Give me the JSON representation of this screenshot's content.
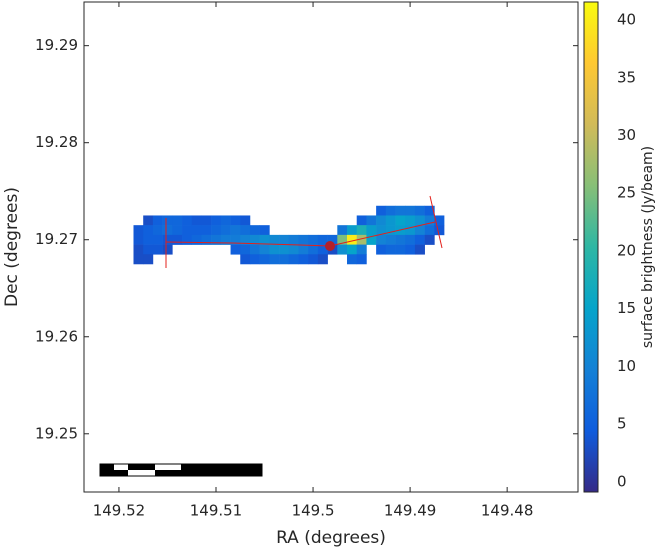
{
  "chart_data": {
    "type": "heatmap",
    "xlabel": "RA (degrees)",
    "ylabel": "Dec (degrees)",
    "colorbar_label": "surface brightness (Jy/beam)",
    "xlim": [
      149.5236,
      149.4727
    ],
    "ylim": [
      19.244,
      19.2945
    ],
    "zlim": [
      -0.87,
      41.56
    ],
    "xticks": [
      149.52,
      149.51,
      149.5,
      149.49,
      149.48
    ],
    "yticks": [
      19.25,
      19.26,
      19.27,
      19.28,
      19.29
    ],
    "zticks": [
      0,
      5,
      10,
      15,
      20,
      25,
      30,
      35,
      40
    ],
    "x": [
      149.517,
      149.516,
      149.515,
      149.514,
      149.513,
      149.512,
      149.511,
      149.51,
      149.509,
      149.508,
      149.507,
      149.518,
      149.517,
      149.516,
      149.515,
      149.514,
      149.513,
      149.512,
      149.511,
      149.51,
      149.509,
      149.508,
      149.507,
      149.506,
      149.505,
      149.518,
      149.517,
      149.516,
      149.515,
      149.514,
      149.513,
      149.512,
      149.511,
      149.51,
      149.509,
      149.508,
      149.507,
      149.506,
      149.505,
      149.504,
      149.503,
      149.502,
      149.501,
      149.5,
      149.499,
      149.498,
      149.518,
      149.517,
      149.516,
      149.515,
      149.508,
      149.507,
      149.506,
      149.505,
      149.504,
      149.503,
      149.502,
      149.501,
      149.5,
      149.499,
      149.498,
      149.518,
      149.517,
      149.507,
      149.506,
      149.505,
      149.504,
      149.503,
      149.502,
      149.501,
      149.5,
      149.499,
      149.493,
      149.492,
      149.491,
      149.49,
      149.489,
      149.488,
      149.495,
      149.494,
      149.493,
      149.492,
      149.491,
      149.49,
      149.489,
      149.488,
      149.487,
      149.497,
      149.496,
      149.495,
      149.494,
      149.493,
      149.492,
      149.491,
      149.49,
      149.489,
      149.488,
      149.487,
      149.497,
      149.496,
      149.495,
      149.494,
      149.493,
      149.492,
      149.491,
      149.49,
      149.489,
      149.488,
      149.497,
      149.496,
      149.495,
      149.493,
      149.492,
      149.491,
      149.49,
      149.489,
      149.496,
      149.495
    ],
    "y": [
      19.272,
      19.272,
      19.272,
      19.272,
      19.272,
      19.272,
      19.272,
      19.272,
      19.272,
      19.272,
      19.272,
      19.271,
      19.271,
      19.271,
      19.271,
      19.271,
      19.271,
      19.271,
      19.271,
      19.271,
      19.271,
      19.271,
      19.271,
      19.271,
      19.271,
      19.27,
      19.27,
      19.27,
      19.27,
      19.27,
      19.27,
      19.27,
      19.27,
      19.27,
      19.27,
      19.27,
      19.27,
      19.27,
      19.27,
      19.27,
      19.27,
      19.27,
      19.27,
      19.27,
      19.27,
      19.27,
      19.269,
      19.269,
      19.269,
      19.269,
      19.269,
      19.269,
      19.269,
      19.269,
      19.269,
      19.269,
      19.269,
      19.269,
      19.269,
      19.269,
      19.269,
      19.268,
      19.268,
      19.268,
      19.268,
      19.268,
      19.268,
      19.268,
      19.268,
      19.268,
      19.268,
      19.268,
      19.273,
      19.273,
      19.273,
      19.273,
      19.273,
      19.273,
      19.272,
      19.272,
      19.272,
      19.272,
      19.272,
      19.272,
      19.272,
      19.272,
      19.272,
      19.271,
      19.271,
      19.271,
      19.271,
      19.271,
      19.271,
      19.271,
      19.271,
      19.271,
      19.271,
      19.271,
      19.27,
      19.27,
      19.27,
      19.27,
      19.27,
      19.27,
      19.27,
      19.27,
      19.27,
      19.27,
      19.269,
      19.269,
      19.269,
      19.269,
      19.269,
      19.269,
      19.269,
      19.269,
      19.268,
      19.268
    ],
    "values": [
      3,
      5,
      6,
      6,
      5,
      4,
      4,
      5,
      6,
      5,
      4,
      4,
      5,
      6,
      7,
      6,
      5,
      5,
      5,
      6,
      7,
      8,
      7,
      6,
      5,
      4,
      5,
      5,
      4,
      4,
      5,
      6,
      7,
      8,
      9,
      9,
      10,
      11,
      12,
      11,
      10,
      9,
      8,
      7,
      6,
      6,
      3,
      4,
      4,
      3,
      5,
      6,
      8,
      10,
      12,
      12,
      11,
      9,
      7,
      5,
      3,
      3,
      3,
      4,
      5,
      6,
      7,
      7,
      6,
      5,
      4,
      3,
      5,
      7,
      8,
      8,
      7,
      5,
      5,
      8,
      11,
      13,
      15,
      14,
      12,
      9,
      5,
      8,
      14,
      18,
      14,
      12,
      13,
      14,
      13,
      10,
      7,
      4,
      25,
      40,
      28,
      15,
      10,
      9,
      8,
      7,
      5,
      3,
      12,
      15,
      9,
      5,
      6,
      6,
      5,
      3,
      6,
      5
    ]
  }
}
